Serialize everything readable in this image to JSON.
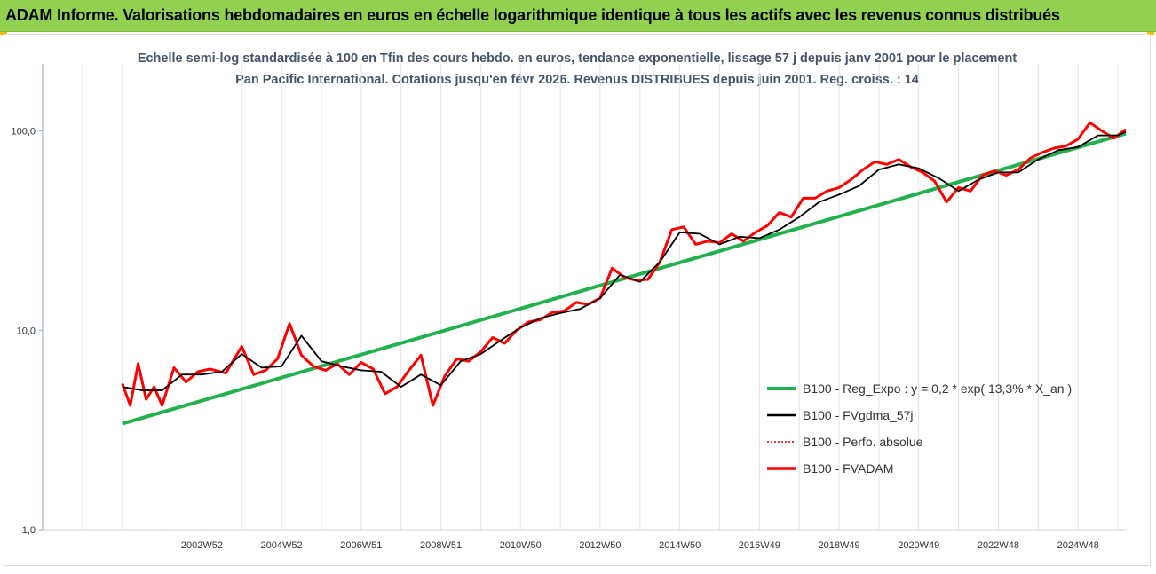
{
  "header": {
    "title": "ADAM Informe. Valorisations hebdomadaires en euros en échelle logarithmique identique à tous les actifs avec les revenus connus distribués",
    "background_color": "#92d050"
  },
  "chart_data": {
    "type": "line",
    "title": "Echelle semi-log standardisée à 100 en Tfin des cours hebdo. en euros, tendance exponentielle, lissage 57 j depuis janv 2001 pour le placement Pan Pacific International. Cotations jusqu'en févr 2026. Revenus DISTRIBUES depuis juin 2001. Reg. croiss. : 14",
    "y_scale": "log",
    "ylim": [
      1,
      200
    ],
    "y_ticks": [
      "1,0",
      "10,0",
      "100,0"
    ],
    "x_range": [
      1999,
      2026.2
    ],
    "x_tick_labels": [
      "2002W52",
      "2004W52",
      "2006W51",
      "2008W51",
      "2010W50",
      "2012W50",
      "2014W50",
      "2016W49",
      "2018W49",
      "2020W49",
      "2022W48",
      "2024W48"
    ],
    "grid": "vertical",
    "legend_position": "right",
    "series": [
      {
        "name": "B100 - Reg_Expo : y = 0,2 * exp( 13,3% *  X_an )",
        "color": "#22b14c",
        "style": "solid",
        "x": [
          2001.0,
          2026.2
        ],
        "y": [
          3.4,
          97
        ]
      },
      {
        "name": "B100 - FVgdma_57j",
        "color": "#000000",
        "style": "solid",
        "x": [
          2001.0,
          2001.5,
          2002.0,
          2002.5,
          2003.0,
          2003.5,
          2004.0,
          2004.5,
          2005.0,
          2005.5,
          2006.0,
          2006.5,
          2007.0,
          2007.5,
          2008.0,
          2008.5,
          2009.0,
          2009.5,
          2010.0,
          2010.5,
          2011.0,
          2011.5,
          2012.0,
          2012.5,
          2013.0,
          2013.5,
          2014.0,
          2014.5,
          2015.0,
          2015.5,
          2016.0,
          2016.5,
          2017.0,
          2017.5,
          2018.0,
          2018.5,
          2019.0,
          2019.5,
          2020.0,
          2020.5,
          2021.0,
          2021.5,
          2022.0,
          2022.5,
          2023.0,
          2023.5,
          2024.0,
          2024.5,
          2025.0,
          2025.5,
          2026.0,
          2026.2
        ],
        "y": [
          5.2,
          5.0,
          5.0,
          6.0,
          6.0,
          6.2,
          7.6,
          6.5,
          6.6,
          9.4,
          7.0,
          6.6,
          6.3,
          6.2,
          5.2,
          6.0,
          5.3,
          7.0,
          7.6,
          8.9,
          10.3,
          11.5,
          12.2,
          12.8,
          14.5,
          19.0,
          17.5,
          22.0,
          31.0,
          30.5,
          27.0,
          29.5,
          29.0,
          32.0,
          37.0,
          44.0,
          48.0,
          53.0,
          64.0,
          68.0,
          65.0,
          58.0,
          50.0,
          57.0,
          62.0,
          62.0,
          72.0,
          80.0,
          83.0,
          95.0,
          95.0,
          99.0
        ]
      },
      {
        "name": "B100 - Perfo. absolue",
        "color": "#c00000",
        "style": "dotted",
        "x": [],
        "y": []
      },
      {
        "name": "B100 - FVADAM",
        "color": "#ff0000",
        "style": "solid",
        "x": [
          2001.0,
          2001.2,
          2001.4,
          2001.6,
          2001.8,
          2002.0,
          2002.3,
          2002.6,
          2002.9,
          2003.2,
          2003.6,
          2004.0,
          2004.3,
          2004.6,
          2004.9,
          2005.2,
          2005.5,
          2005.8,
          2006.1,
          2006.4,
          2006.7,
          2007.0,
          2007.3,
          2007.6,
          2007.9,
          2008.2,
          2008.5,
          2008.8,
          2009.1,
          2009.4,
          2009.7,
          2010.0,
          2010.3,
          2010.6,
          2010.9,
          2011.2,
          2011.5,
          2011.8,
          2012.1,
          2012.4,
          2012.7,
          2013.0,
          2013.3,
          2013.6,
          2013.9,
          2014.2,
          2014.5,
          2014.8,
          2015.1,
          2015.4,
          2015.7,
          2016.0,
          2016.3,
          2016.6,
          2016.9,
          2017.2,
          2017.5,
          2017.8,
          2018.1,
          2018.4,
          2018.7,
          2019.0,
          2019.3,
          2019.6,
          2019.9,
          2020.2,
          2020.5,
          2020.8,
          2021.1,
          2021.4,
          2021.7,
          2022.0,
          2022.3,
          2022.6,
          2022.9,
          2023.2,
          2023.5,
          2023.8,
          2024.1,
          2024.4,
          2024.7,
          2025.0,
          2025.3,
          2025.6,
          2025.9,
          2026.2
        ],
        "y": [
          5.4,
          4.2,
          6.8,
          4.5,
          5.2,
          4.2,
          6.5,
          5.5,
          6.2,
          6.4,
          6.1,
          8.3,
          6.0,
          6.3,
          7.2,
          10.8,
          7.5,
          6.6,
          6.3,
          6.8,
          6.0,
          6.9,
          6.4,
          4.8,
          5.2,
          6.3,
          7.5,
          4.2,
          5.9,
          7.2,
          7.0,
          7.8,
          9.2,
          8.6,
          10.0,
          11.0,
          11.3,
          12.3,
          12.5,
          13.8,
          13.5,
          14.5,
          20.5,
          18.5,
          17.8,
          18.0,
          22.0,
          32.0,
          33.0,
          27.0,
          28.0,
          27.5,
          30.5,
          28.0,
          31.0,
          33.5,
          39.0,
          37.0,
          46.0,
          46.0,
          50.0,
          52.0,
          57.0,
          64.0,
          70.0,
          68.0,
          72.0,
          66.0,
          62.0,
          56.0,
          44.0,
          52.0,
          50.0,
          60.0,
          63.0,
          60.0,
          64.0,
          73.0,
          78.0,
          82.0,
          84.0,
          91.0,
          110.0,
          100.0,
          92.0,
          102.0
        ]
      }
    ]
  }
}
